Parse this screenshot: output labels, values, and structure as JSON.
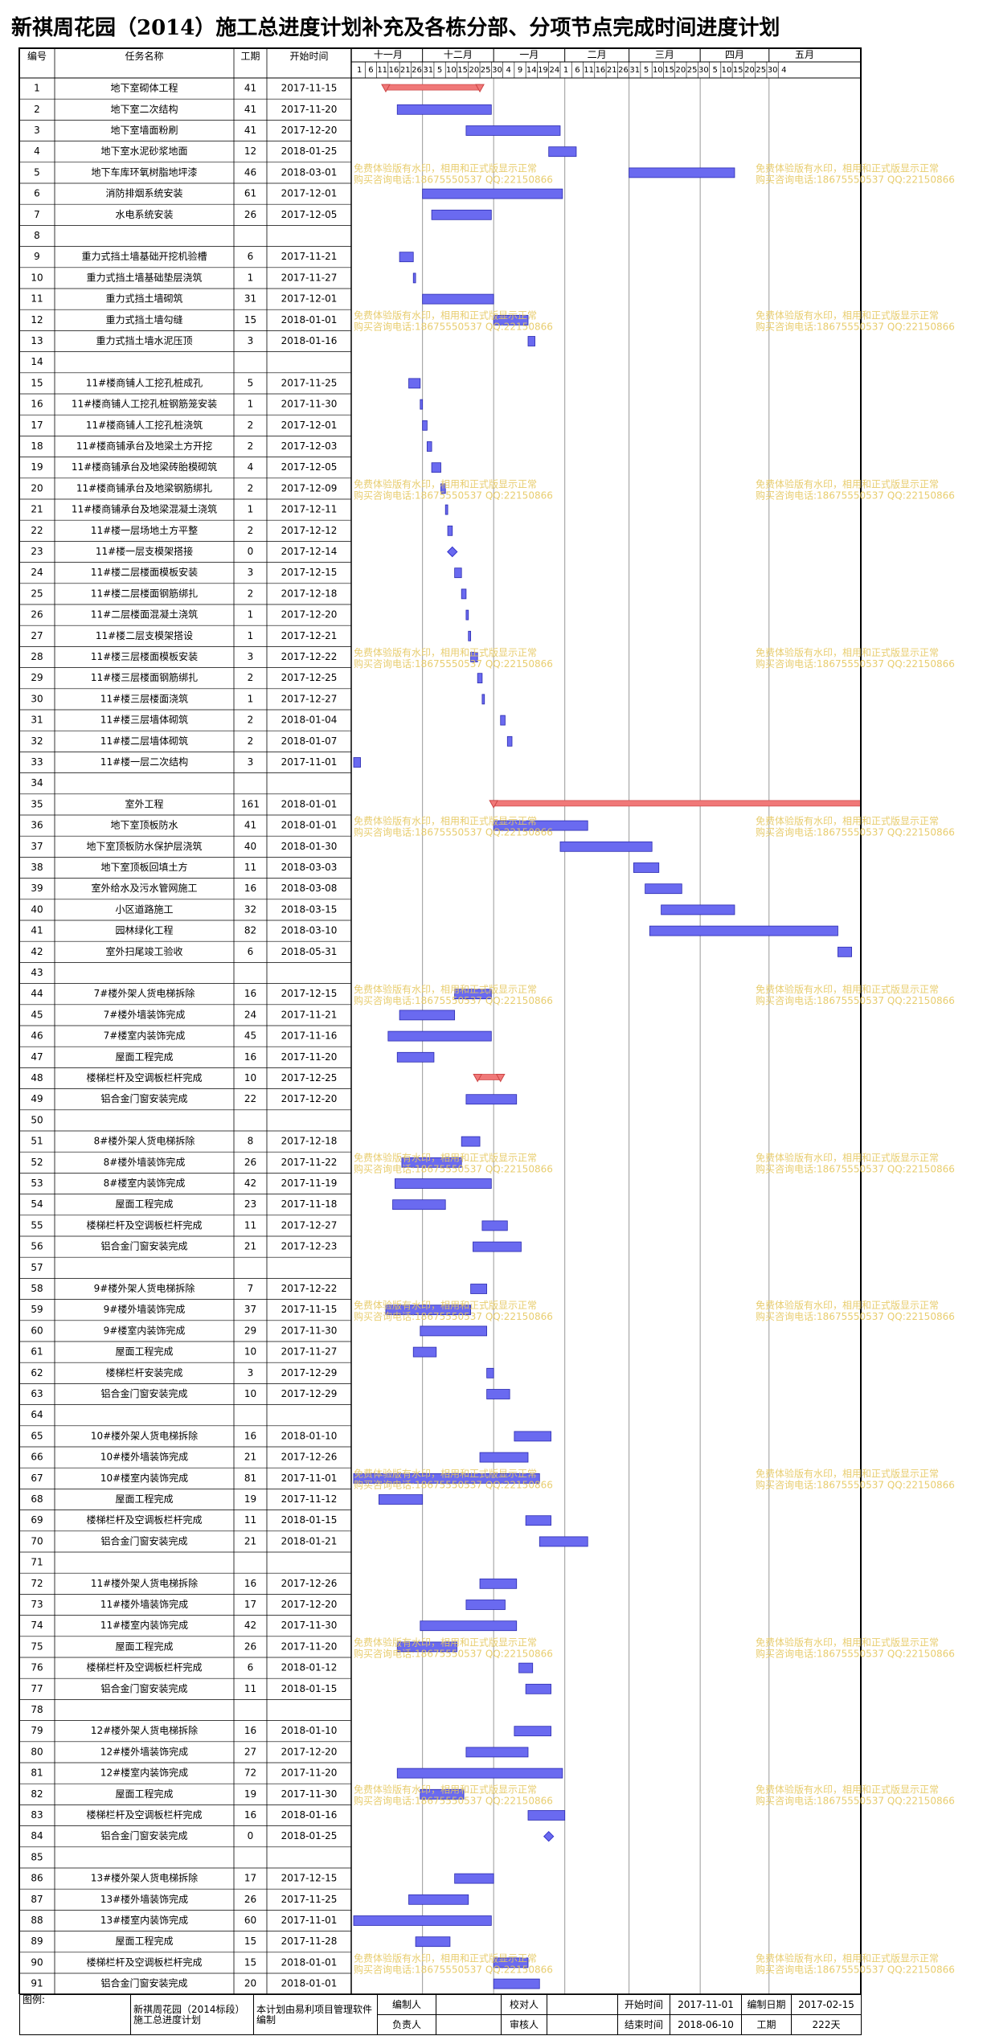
{
  "title": "新祺周花园（2014）施工总进度计划补充及各栋分部、分项节点完成时间进度计划",
  "header": {
    "no": "编号",
    "name": "任务名称",
    "duration": "工期",
    "start": "开始时间"
  },
  "timeline": {
    "months": [
      "十一月",
      "十二月",
      "一月",
      "二月",
      "三月",
      "四月",
      "五月"
    ],
    "days": [
      1,
      6,
      11,
      16,
      21,
      26,
      31,
      5,
      10,
      15,
      20,
      25,
      30,
      4,
      9,
      14,
      19,
      24,
      1,
      6,
      11,
      16,
      21,
      26,
      31,
      5,
      10,
      15,
      20,
      25,
      30,
      5,
      10,
      15,
      20,
      25,
      30,
      4
    ]
  },
  "gantt": {
    "bar_color": "#6a6af0",
    "grid": true
  },
  "table": {
    "rows": [
      {
        "no": 1,
        "name": "地下室砌体工程",
        "duration": 41,
        "start": "2017-11-15",
        "color": "#f07878"
      },
      {
        "no": 2,
        "name": "地下室二次结构",
        "duration": 41,
        "start": "2017-11-20"
      },
      {
        "no": 3,
        "name": "地下室墙面粉刷",
        "duration": 41,
        "start": "2017-12-20"
      },
      {
        "no": 4,
        "name": "地下室水泥砂浆地面",
        "duration": 12,
        "start": "2018-01-25"
      },
      {
        "no": 5,
        "name": "地下车库环氧树脂地坪漆",
        "duration": 46,
        "start": "2018-03-01"
      },
      {
        "no": 6,
        "name": "消防排烟系统安装",
        "duration": 61,
        "start": "2017-12-01"
      },
      {
        "no": 7,
        "name": "水电系统安装",
        "duration": 26,
        "start": "2017-12-05"
      },
      {
        "no": 8,
        "name": null,
        "duration": null,
        "start": null
      },
      {
        "no": 9,
        "name": "重力式挡土墙基础开挖机验槽",
        "duration": 6,
        "start": "2017-11-21"
      },
      {
        "no": 10,
        "name": "重力式挡土墙基础垫层浇筑",
        "duration": 1,
        "start": "2017-11-27"
      },
      {
        "no": 11,
        "name": "重力式挡土墙砌筑",
        "duration": 31,
        "start": "2017-12-01"
      },
      {
        "no": 12,
        "name": "重力式挡土墙勾缝",
        "duration": 15,
        "start": "2018-01-01"
      },
      {
        "no": 13,
        "name": "重力式挡土墙水泥压顶",
        "duration": 3,
        "start": "2018-01-16"
      },
      {
        "no": 14,
        "name": null,
        "duration": null,
        "start": null
      },
      {
        "no": 15,
        "name": "11#楼商铺人工挖孔桩成孔",
        "duration": 5,
        "start": "2017-11-25"
      },
      {
        "no": 16,
        "name": "11#楼商铺人工挖孔桩钢筋笼安装",
        "duration": 1,
        "start": "2017-11-30"
      },
      {
        "no": 17,
        "name": "11#楼商铺人工挖孔桩浇筑",
        "duration": 2,
        "start": "2017-12-01"
      },
      {
        "no": 18,
        "name": "11#楼商铺承台及地梁土方开挖",
        "duration": 2,
        "start": "2017-12-03"
      },
      {
        "no": 19,
        "name": "11#楼商铺承台及地梁砖胎模砌筑",
        "duration": 4,
        "start": "2017-12-05"
      },
      {
        "no": 20,
        "name": "11#楼商铺承台及地梁钢筋绑扎",
        "duration": 2,
        "start": "2017-12-09"
      },
      {
        "no": 21,
        "name": "11#楼商铺承台及地梁混凝土浇筑",
        "duration": 1,
        "start": "2017-12-11"
      },
      {
        "no": 22,
        "name": "11#楼一层场地土方平整",
        "duration": 2,
        "start": "2017-12-12"
      },
      {
        "no": 23,
        "name": "11#楼一层支模架搭接",
        "duration": 0,
        "start": "2017-12-14"
      },
      {
        "no": 24,
        "name": "11#楼二层楼面模板安装",
        "duration": 3,
        "start": "2017-12-15"
      },
      {
        "no": 25,
        "name": "11#楼二层楼面钢筋绑扎",
        "duration": 2,
        "start": "2017-12-18"
      },
      {
        "no": 26,
        "name": "11#二层楼面混凝土浇筑",
        "duration": 1,
        "start": "2017-12-20"
      },
      {
        "no": 27,
        "name": "11#楼二层支模架搭设",
        "duration": 1,
        "start": "2017-12-21"
      },
      {
        "no": 28,
        "name": "11#楼三层楼面模板安装",
        "duration": 3,
        "start": "2017-12-22"
      },
      {
        "no": 29,
        "name": "11#楼三层楼面钢筋绑扎",
        "duration": 2,
        "start": "2017-12-25"
      },
      {
        "no": 30,
        "name": "11#楼三层楼面浇筑",
        "duration": 1,
        "start": "2017-12-27"
      },
      {
        "no": 31,
        "name": "11#楼三层墙体砌筑",
        "duration": 2,
        "start": "2018-01-04"
      },
      {
        "no": 32,
        "name": "11#楼二层墙体砌筑",
        "duration": 2,
        "start": "2018-01-07"
      },
      {
        "no": 33,
        "name": "11#楼一层二次结构",
        "duration": 3,
        "start": "2017-11-01"
      },
      {
        "no": 34,
        "name": null,
        "duration": null,
        "start": null
      },
      {
        "no": 35,
        "name": "室外工程",
        "duration": 161,
        "start": "2018-01-01",
        "color": "#f07878"
      },
      {
        "no": 36,
        "name": "地下室顶板防水",
        "duration": 41,
        "start": "2018-01-01"
      },
      {
        "no": 37,
        "name": "地下室顶板防水保护层浇筑",
        "duration": 40,
        "start": "2018-01-30"
      },
      {
        "no": 38,
        "name": "地下室顶板回填土方",
        "duration": 11,
        "start": "2018-03-03"
      },
      {
        "no": 39,
        "name": "室外给水及污水管网施工",
        "duration": 16,
        "start": "2018-03-08"
      },
      {
        "no": 40,
        "name": "小区道路施工",
        "duration": 32,
        "start": "2018-03-15"
      },
      {
        "no": 41,
        "name": "园林绿化工程",
        "duration": 82,
        "start": "2018-03-10"
      },
      {
        "no": 42,
        "name": "室外扫尾竣工验收",
        "duration": 6,
        "start": "2018-05-31"
      },
      {
        "no": 43,
        "name": null,
        "duration": null,
        "start": null
      },
      {
        "no": 44,
        "name": "7#楼外架人货电梯拆除",
        "duration": 16,
        "start": "2017-12-15"
      },
      {
        "no": 45,
        "name": "7#楼外墙装饰完成",
        "duration": 24,
        "start": "2017-11-21"
      },
      {
        "no": 46,
        "name": "7#楼室内装饰完成",
        "duration": 45,
        "start": "2017-11-16"
      },
      {
        "no": 47,
        "name": "屋面工程完成",
        "duration": 16,
        "start": "2017-11-20"
      },
      {
        "no": 48,
        "name": "楼梯栏杆及空调板栏杆完成",
        "duration": 10,
        "start": "2017-12-25",
        "color": "#f07878"
      },
      {
        "no": 49,
        "name": "铝合金门窗安装完成",
        "duration": 22,
        "start": "2017-12-20"
      },
      {
        "no": 50,
        "name": null,
        "duration": null,
        "start": null
      },
      {
        "no": 51,
        "name": "8#楼外架人货电梯拆除",
        "duration": 8,
        "start": "2017-12-18"
      },
      {
        "no": 52,
        "name": "8#楼外墙装饰完成",
        "duration": 26,
        "start": "2017-11-22"
      },
      {
        "no": 53,
        "name": "8#楼室内装饰完成",
        "duration": 42,
        "start": "2017-11-19"
      },
      {
        "no": 54,
        "name": "屋面工程完成",
        "duration": 23,
        "start": "2017-11-18"
      },
      {
        "no": 55,
        "name": "楼梯栏杆及空调板栏杆完成",
        "duration": 11,
        "start": "2017-12-27"
      },
      {
        "no": 56,
        "name": "铝合金门窗安装完成",
        "duration": 21,
        "start": "2017-12-23"
      },
      {
        "no": 57,
        "name": null,
        "duration": null,
        "start": null
      },
      {
        "no": 58,
        "name": "9#楼外架人货电梯拆除",
        "duration": 7,
        "start": "2017-12-22"
      },
      {
        "no": 59,
        "name": "9#楼外墙装饰完成",
        "duration": 37,
        "start": "2017-11-15"
      },
      {
        "no": 60,
        "name": "9#楼室内装饰完成",
        "duration": 29,
        "start": "2017-11-30"
      },
      {
        "no": 61,
        "name": "屋面工程完成",
        "duration": 10,
        "start": "2017-11-27"
      },
      {
        "no": 62,
        "name": "楼梯栏杆安装完成",
        "duration": 3,
        "start": "2017-12-29"
      },
      {
        "no": 63,
        "name": "铝合金门窗安装完成",
        "duration": 10,
        "start": "2017-12-29"
      },
      {
        "no": 64,
        "name": null,
        "duration": null,
        "start": null
      },
      {
        "no": 65,
        "name": "10#楼外架人货电梯拆除",
        "duration": 16,
        "start": "2018-01-10"
      },
      {
        "no": 66,
        "name": "10#楼外墙装饰完成",
        "duration": 21,
        "start": "2017-12-26"
      },
      {
        "no": 67,
        "name": "10#楼室内装饰完成",
        "duration": 81,
        "start": "2017-11-01"
      },
      {
        "no": 68,
        "name": "屋面工程完成",
        "duration": 19,
        "start": "2017-11-12"
      },
      {
        "no": 69,
        "name": "楼梯栏杆及空调板栏杆完成",
        "duration": 11,
        "start": "2018-01-15"
      },
      {
        "no": 70,
        "name": "铝合金门窗安装完成",
        "duration": 21,
        "start": "2018-01-21"
      },
      {
        "no": 71,
        "name": null,
        "duration": null,
        "start": null
      },
      {
        "no": 72,
        "name": "11#楼外架人货电梯拆除",
        "duration": 16,
        "start": "2017-12-26"
      },
      {
        "no": 73,
        "name": "11#楼外墙装饰完成",
        "duration": 17,
        "start": "2017-12-20"
      },
      {
        "no": 74,
        "name": "11#楼室内装饰完成",
        "duration": 42,
        "start": "2017-11-30"
      },
      {
        "no": 75,
        "name": "屋面工程完成",
        "duration": 26,
        "start": "2017-11-20"
      },
      {
        "no": 76,
        "name": "楼梯栏杆及空调板栏杆完成",
        "duration": 6,
        "start": "2018-01-12"
      },
      {
        "no": 77,
        "name": "铝合金门窗安装完成",
        "duration": 11,
        "start": "2018-01-15"
      },
      {
        "no": 78,
        "name": null,
        "duration": null,
        "start": null
      },
      {
        "no": 79,
        "name": "12#楼外架人货电梯拆除",
        "duration": 16,
        "start": "2018-01-10"
      },
      {
        "no": 80,
        "name": "12#楼外墙装饰完成",
        "duration": 27,
        "start": "2017-12-20"
      },
      {
        "no": 81,
        "name": "12#楼室内装饰完成",
        "duration": 72,
        "start": "2017-11-20"
      },
      {
        "no": 82,
        "name": "屋面工程完成",
        "duration": 19,
        "start": "2017-11-30"
      },
      {
        "no": 83,
        "name": "楼梯栏杆及空调板栏杆完成",
        "duration": 16,
        "start": "2018-01-16"
      },
      {
        "no": 84,
        "name": "铝合金门窗安装完成",
        "duration": 0,
        "start": "2018-01-25"
      },
      {
        "no": 85,
        "name": null,
        "duration": null,
        "start": null
      },
      {
        "no": 86,
        "name": "13#楼外架人货电梯拆除",
        "duration": 17,
        "start": "2017-12-15"
      },
      {
        "no": 87,
        "name": "13#楼外墙装饰完成",
        "duration": 26,
        "start": "2017-11-25"
      },
      {
        "no": 88,
        "name": "13#楼室内装饰完成",
        "duration": 60,
        "start": "2017-11-01"
      },
      {
        "no": 89,
        "name": "屋面工程完成",
        "duration": 15,
        "start": "2017-11-28"
      },
      {
        "no": 90,
        "name": "楼梯栏杆及空调板栏杆完成",
        "duration": 15,
        "start": "2018-01-01"
      },
      {
        "no": 91,
        "name": "铝合金门窗安装完成",
        "duration": 20,
        "start": "2018-01-01"
      }
    ]
  },
  "footer": {
    "legend": "图例:",
    "plan_name": "新祺周花园（2014标段）施工总进度计划",
    "software": "本计划由易利项目管理软件编制",
    "author_label": "编制人",
    "checker_label": "校对人",
    "owner_label": "负责人",
    "reviewer_label": "审核人",
    "start_label": "开始时间",
    "start": "2017-11-01",
    "end_label": "结束时间",
    "end": "2018-06-10",
    "date_label": "编制日期",
    "date": "2017-02-15",
    "period_label": "工期",
    "period": "222天"
  },
  "watermark": [
    "免费体验版有水印，相用和正式版显示正常",
    "购买咨询电话:18675550537 QQ:22150866"
  ]
}
